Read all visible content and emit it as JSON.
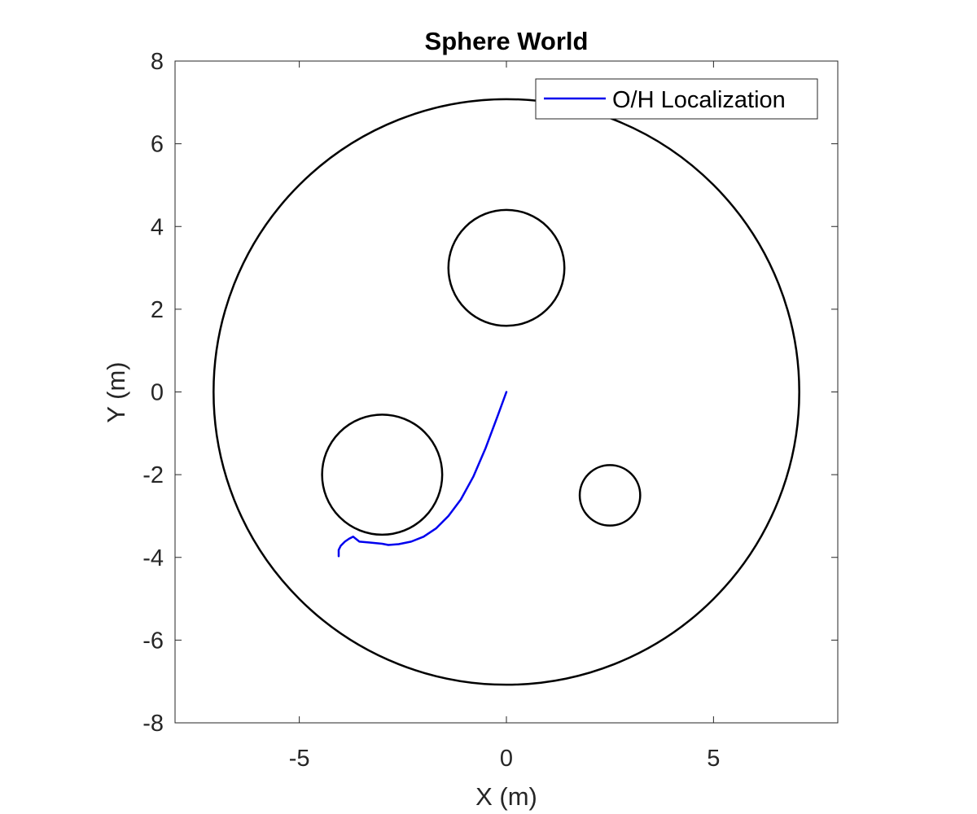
{
  "chart_data": {
    "type": "line",
    "title": "Sphere World",
    "xlabel": "X (m)",
    "ylabel": "Y (m)",
    "xlim": [
      -8,
      8
    ],
    "ylim": [
      -8,
      8
    ],
    "xticks": [
      -5,
      0,
      5
    ],
    "yticks": [
      8,
      6,
      4,
      2,
      0,
      -2,
      -4,
      -6,
      -8
    ],
    "xtick_labels": [
      "-5",
      "0",
      "5"
    ],
    "ytick_labels": [
      "8",
      "6",
      "4",
      "2",
      "0",
      "-2",
      "-4",
      "-6",
      "-8"
    ],
    "grid": false,
    "legend_position": "top-right",
    "obstacles": [
      {
        "name": "boundary",
        "cx": 0,
        "cy": 0,
        "r": 7.07,
        "color": "#000000"
      },
      {
        "name": "obstacle-1",
        "cx": 0,
        "cy": 3,
        "r": 1.4,
        "color": "#000000"
      },
      {
        "name": "obstacle-2",
        "cx": -3,
        "cy": -2,
        "r": 1.45,
        "color": "#000000"
      },
      {
        "name": "obstacle-3",
        "cx": 2.5,
        "cy": -2.5,
        "r": 0.73,
        "color": "#000000"
      }
    ],
    "series": [
      {
        "name": "O/H Localization",
        "color": "#0000ee",
        "x": [
          0,
          -0.2,
          -0.5,
          -0.8,
          -1.1,
          -1.4,
          -1.7,
          -2.0,
          -2.3,
          -2.6,
          -2.85,
          -3.0,
          -3.3,
          -3.55,
          -3.7,
          -3.8,
          -3.9,
          -4.0,
          -4.05,
          -4.05
        ],
        "y": [
          0,
          -0.55,
          -1.35,
          -2.05,
          -2.6,
          -3.0,
          -3.3,
          -3.5,
          -3.62,
          -3.68,
          -3.7,
          -3.67,
          -3.64,
          -3.62,
          -3.5,
          -3.55,
          -3.62,
          -3.72,
          -3.82,
          -3.97
        ]
      }
    ]
  }
}
